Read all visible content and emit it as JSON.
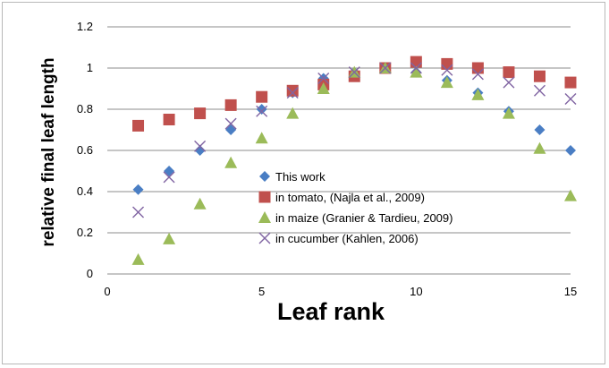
{
  "chart_data": {
    "type": "scatter",
    "title": "",
    "xlabel": "Leaf rank",
    "ylabel": "relative final leaf length",
    "xlim": [
      0,
      15
    ],
    "ylim": [
      0,
      1.2
    ],
    "xticks": [
      0,
      5,
      10,
      15
    ],
    "yticks": [
      0,
      0.2,
      0.4,
      0.6,
      0.8,
      1,
      1.2
    ],
    "grid": "horizontal",
    "legend_position": "inside-bottom-center",
    "series": [
      {
        "name": "This work",
        "marker": "diamond",
        "color": "#4a7ec4",
        "x": [
          1,
          2,
          3,
          4,
          5,
          6,
          7,
          8,
          9,
          10,
          11,
          12,
          13,
          14,
          15
        ],
        "y": [
          0.41,
          0.5,
          0.6,
          0.7,
          0.8,
          0.88,
          0.95,
          0.98,
          1.0,
          0.98,
          0.94,
          0.88,
          0.79,
          0.7,
          0.6
        ]
      },
      {
        "name": "in tomato, (Najla  et al., 2009)",
        "marker": "square",
        "color": "#c0504d",
        "x": [
          1,
          2,
          3,
          4,
          5,
          6,
          7,
          8,
          9,
          10,
          11,
          12,
          13,
          14,
          15
        ],
        "y": [
          0.72,
          0.75,
          0.78,
          0.82,
          0.86,
          0.89,
          0.92,
          0.96,
          1.0,
          1.03,
          1.02,
          1.0,
          0.98,
          0.96,
          0.93
        ]
      },
      {
        "name": "in maize (Granier & Tardieu, 2009)",
        "marker": "triangle",
        "color": "#9bbb59",
        "x": [
          1,
          2,
          3,
          4,
          5,
          6,
          7,
          8,
          9,
          10,
          11,
          12,
          13,
          14,
          15
        ],
        "y": [
          0.07,
          0.17,
          0.34,
          0.54,
          0.66,
          0.78,
          0.9,
          0.98,
          1.0,
          0.98,
          0.93,
          0.87,
          0.78,
          0.61,
          0.38
        ]
      },
      {
        "name": "in cucumber (Kahlen, 2006)",
        "marker": "x",
        "color": "#8064a2",
        "x": [
          1,
          2,
          3,
          4,
          5,
          6,
          7,
          8,
          9,
          10,
          11,
          12,
          13,
          14,
          15
        ],
        "y": [
          0.3,
          0.47,
          0.62,
          0.73,
          0.79,
          0.88,
          0.95,
          0.98,
          1.0,
          1.0,
          0.99,
          0.97,
          0.93,
          0.89,
          0.85
        ]
      }
    ]
  }
}
